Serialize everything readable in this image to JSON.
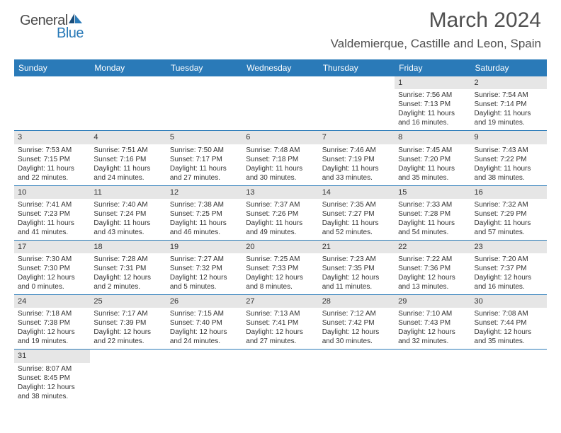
{
  "logo": {
    "text1": "General",
    "text2": "Blue"
  },
  "title": "March 2024",
  "location": "Valdemierque, Castille and Leon, Spain",
  "colors": {
    "header_bg": "#2a7ab8",
    "daynum_bg": "#e6e6e6",
    "border": "#2a7ab8",
    "text": "#333333",
    "title": "#505050"
  },
  "dayNames": [
    "Sunday",
    "Monday",
    "Tuesday",
    "Wednesday",
    "Thursday",
    "Friday",
    "Saturday"
  ],
  "days": [
    {
      "n": 1,
      "sr": "7:56 AM",
      "ss": "7:13 PM",
      "dh": 11,
      "dm": 16
    },
    {
      "n": 2,
      "sr": "7:54 AM",
      "ss": "7:14 PM",
      "dh": 11,
      "dm": 19
    },
    {
      "n": 3,
      "sr": "7:53 AM",
      "ss": "7:15 PM",
      "dh": 11,
      "dm": 22
    },
    {
      "n": 4,
      "sr": "7:51 AM",
      "ss": "7:16 PM",
      "dh": 11,
      "dm": 24
    },
    {
      "n": 5,
      "sr": "7:50 AM",
      "ss": "7:17 PM",
      "dh": 11,
      "dm": 27
    },
    {
      "n": 6,
      "sr": "7:48 AM",
      "ss": "7:18 PM",
      "dh": 11,
      "dm": 30
    },
    {
      "n": 7,
      "sr": "7:46 AM",
      "ss": "7:19 PM",
      "dh": 11,
      "dm": 33
    },
    {
      "n": 8,
      "sr": "7:45 AM",
      "ss": "7:20 PM",
      "dh": 11,
      "dm": 35
    },
    {
      "n": 9,
      "sr": "7:43 AM",
      "ss": "7:22 PM",
      "dh": 11,
      "dm": 38
    },
    {
      "n": 10,
      "sr": "7:41 AM",
      "ss": "7:23 PM",
      "dh": 11,
      "dm": 41
    },
    {
      "n": 11,
      "sr": "7:40 AM",
      "ss": "7:24 PM",
      "dh": 11,
      "dm": 43
    },
    {
      "n": 12,
      "sr": "7:38 AM",
      "ss": "7:25 PM",
      "dh": 11,
      "dm": 46
    },
    {
      "n": 13,
      "sr": "7:37 AM",
      "ss": "7:26 PM",
      "dh": 11,
      "dm": 49
    },
    {
      "n": 14,
      "sr": "7:35 AM",
      "ss": "7:27 PM",
      "dh": 11,
      "dm": 52
    },
    {
      "n": 15,
      "sr": "7:33 AM",
      "ss": "7:28 PM",
      "dh": 11,
      "dm": 54
    },
    {
      "n": 16,
      "sr": "7:32 AM",
      "ss": "7:29 PM",
      "dh": 11,
      "dm": 57
    },
    {
      "n": 17,
      "sr": "7:30 AM",
      "ss": "7:30 PM",
      "dh": 12,
      "dm": 0
    },
    {
      "n": 18,
      "sr": "7:28 AM",
      "ss": "7:31 PM",
      "dh": 12,
      "dm": 2
    },
    {
      "n": 19,
      "sr": "7:27 AM",
      "ss": "7:32 PM",
      "dh": 12,
      "dm": 5
    },
    {
      "n": 20,
      "sr": "7:25 AM",
      "ss": "7:33 PM",
      "dh": 12,
      "dm": 8
    },
    {
      "n": 21,
      "sr": "7:23 AM",
      "ss": "7:35 PM",
      "dh": 12,
      "dm": 11
    },
    {
      "n": 22,
      "sr": "7:22 AM",
      "ss": "7:36 PM",
      "dh": 12,
      "dm": 13
    },
    {
      "n": 23,
      "sr": "7:20 AM",
      "ss": "7:37 PM",
      "dh": 12,
      "dm": 16
    },
    {
      "n": 24,
      "sr": "7:18 AM",
      "ss": "7:38 PM",
      "dh": 12,
      "dm": 19
    },
    {
      "n": 25,
      "sr": "7:17 AM",
      "ss": "7:39 PM",
      "dh": 12,
      "dm": 22
    },
    {
      "n": 26,
      "sr": "7:15 AM",
      "ss": "7:40 PM",
      "dh": 12,
      "dm": 24
    },
    {
      "n": 27,
      "sr": "7:13 AM",
      "ss": "7:41 PM",
      "dh": 12,
      "dm": 27
    },
    {
      "n": 28,
      "sr": "7:12 AM",
      "ss": "7:42 PM",
      "dh": 12,
      "dm": 30
    },
    {
      "n": 29,
      "sr": "7:10 AM",
      "ss": "7:43 PM",
      "dh": 12,
      "dm": 32
    },
    {
      "n": 30,
      "sr": "7:08 AM",
      "ss": "7:44 PM",
      "dh": 12,
      "dm": 35
    },
    {
      "n": 31,
      "sr": "8:07 AM",
      "ss": "8:45 PM",
      "dh": 12,
      "dm": 38
    }
  ],
  "startWeekday": 5,
  "labels": {
    "sunrise": "Sunrise:",
    "sunset": "Sunset:",
    "daylight1": "Daylight:",
    "hours": "hours",
    "and": "and",
    "minutes": "minutes."
  }
}
